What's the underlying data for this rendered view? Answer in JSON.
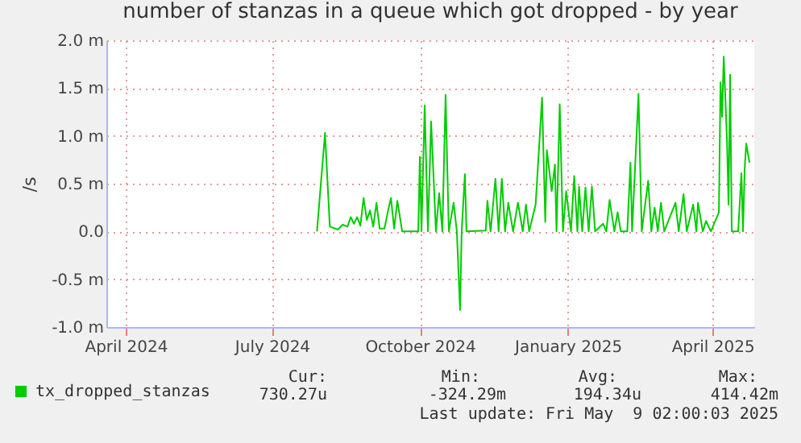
{
  "chart_data": {
    "type": "line",
    "title": "number of stanzas in a queue which got dropped - by year",
    "ylabel": "/s",
    "x": [
      "2024-07-29",
      "2024-08-03",
      "2024-08-06",
      "2024-08-11",
      "2024-08-14",
      "2024-08-17",
      "2024-08-19",
      "2024-08-21",
      "2024-08-23",
      "2024-08-25",
      "2024-08-27",
      "2024-08-29",
      "2024-08-31",
      "2024-09-02",
      "2024-09-04",
      "2024-09-06",
      "2024-09-09",
      "2024-09-11",
      "2024-09-13",
      "2024-09-15",
      "2024-09-17",
      "2024-09-20",
      "2024-09-30",
      "2024-10-01",
      "2024-10-02",
      "2024-10-04",
      "2024-10-06",
      "2024-10-08",
      "2024-10-11",
      "2024-10-13",
      "2024-10-15",
      "2024-10-17",
      "2024-10-19",
      "2024-10-22",
      "2024-10-24",
      "2024-10-26",
      "2024-10-27",
      "2024-10-29",
      "2024-10-30",
      "2024-11-11",
      "2024-11-12",
      "2024-11-14",
      "2024-11-17",
      "2024-11-19",
      "2024-11-21",
      "2024-11-23",
      "2024-11-25",
      "2024-11-28",
      "2024-12-01",
      "2024-12-04",
      "2024-12-06",
      "2024-12-08",
      "2024-12-12",
      "2024-12-16",
      "2024-12-18",
      "2024-12-19",
      "2024-12-22",
      "2024-12-24",
      "2024-12-25",
      "2024-12-27",
      "2024-12-29",
      "2024-12-31",
      "2025-01-03",
      "2025-01-05",
      "2025-01-07",
      "2025-01-08",
      "2025-01-10",
      "2025-01-12",
      "2025-01-14",
      "2025-01-16",
      "2025-01-18",
      "2025-01-23",
      "2025-01-25",
      "2025-01-27",
      "2025-01-30",
      "2025-02-01",
      "2025-02-03",
      "2025-02-07",
      "2025-02-09",
      "2025-02-10",
      "2025-02-14",
      "2025-02-16",
      "2025-02-20",
      "2025-02-22",
      "2025-02-24",
      "2025-02-26",
      "2025-02-28",
      "2025-03-02",
      "2025-03-09",
      "2025-03-11",
      "2025-03-14",
      "2025-03-16",
      "2025-03-20",
      "2025-03-22",
      "2025-03-23",
      "2025-03-26",
      "2025-03-28",
      "2025-03-31",
      "2025-04-05",
      "2025-04-06",
      "2025-04-07",
      "2025-04-08",
      "2025-04-10",
      "2025-04-11",
      "2025-04-12",
      "2025-04-13",
      "2025-04-17",
      "2025-04-19",
      "2025-04-20",
      "2025-04-21",
      "2025-04-22",
      "2025-04-24"
    ],
    "series": [
      {
        "name": "tx_dropped_stanzas",
        "color": "#00cc00",
        "values": [
          0,
          1.03,
          0.05,
          0.02,
          0.07,
          0.05,
          0.15,
          0.08,
          0.15,
          0.06,
          0.35,
          0.12,
          0.22,
          0.05,
          0.3,
          0.03,
          0.03,
          0.2,
          0.35,
          0.03,
          0.32,
          0,
          0,
          0.78,
          0,
          1.32,
          0,
          1.15,
          0,
          0.4,
          0,
          1.43,
          0,
          0.3,
          0,
          -0.82,
          0,
          0.6,
          0,
          0.01,
          0.32,
          0,
          0.55,
          0,
          0.55,
          0,
          0.3,
          0,
          0.3,
          0,
          0.28,
          0,
          0.28,
          1.4,
          0.1,
          0.85,
          0.42,
          0.7,
          0,
          1.33,
          0,
          0.42,
          0,
          0.58,
          0,
          0.47,
          0,
          0.46,
          0,
          0.47,
          0,
          0.08,
          0,
          0.33,
          0,
          0.2,
          0,
          0,
          0.72,
          0,
          1.44,
          0,
          0.53,
          0,
          0.25,
          0,
          0.3,
          0,
          0.3,
          0,
          0.39,
          0,
          0.28,
          0,
          0.3,
          0,
          0.11,
          0,
          0.2,
          1.56,
          1.2,
          1.83,
          0.97,
          0.28,
          1.64,
          0,
          0,
          0.61,
          0,
          0.64,
          0.92,
          0.72
        ]
      }
    ],
    "xlim": [
      "2024-03-20",
      "2025-04-27"
    ],
    "xticks": [
      {
        "value": "2024-04-01",
        "label": "April 2024"
      },
      {
        "value": "2024-07-01",
        "label": "July 2024"
      },
      {
        "value": "2024-10-01",
        "label": "October 2024"
      },
      {
        "value": "2025-01-01",
        "label": "January 2025"
      },
      {
        "value": "2025-04-01",
        "label": "April 2025"
      }
    ],
    "ylim": [
      -1.0,
      2.0
    ],
    "yticks": [
      {
        "value": -1.0,
        "label": "-1.0 m"
      },
      {
        "value": -0.5,
        "label": "-0.5 m"
      },
      {
        "value": 0,
        "label": "0.0"
      },
      {
        "value": 0.5,
        "label": "0.5 m"
      },
      {
        "value": 1.0,
        "label": "1.0 m"
      },
      {
        "value": 1.5,
        "label": "1.5 m"
      },
      {
        "value": 2.0,
        "label": "2.0 m"
      }
    ],
    "grid": true,
    "legend": "bottom left",
    "annotations": [
      "Cur:",
      "730.27u",
      "Min:",
      "-324.29m",
      "Avg:",
      "194.34u",
      "Max:",
      "414.42m",
      "Last update: Fri May  9 02:00:03 2025"
    ]
  }
}
